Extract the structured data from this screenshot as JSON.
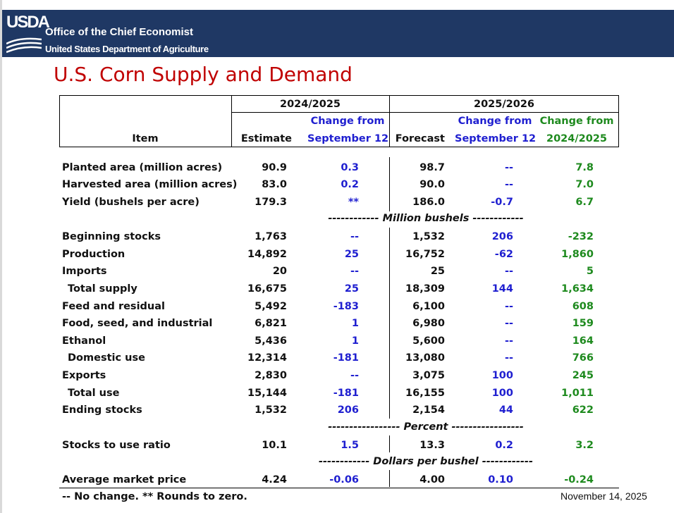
{
  "header": {
    "logo_text": "USDA",
    "org_line1": "Office of the Chief Economist",
    "org_line2": "United States Department of Agriculture"
  },
  "title": "U.S. Corn Supply and Demand",
  "table": {
    "group1": "2024/2025",
    "group2": "2025/2026",
    "col_item": "Item",
    "col_estimate": "Estimate",
    "col_change1_l1": "Change from",
    "col_change1_l2": "September 12",
    "col_forecast": "Forecast",
    "col_change2_l1": "Change from",
    "col_change2_l2": "September 12",
    "col_change3_l1": "Change from",
    "col_change3_l2": "2024/2025",
    "separators": {
      "million_bushels": "------------ Million bushels ------------",
      "percent": "----------------- Percent -----------------",
      "dollars": "------------ Dollars per bushel ------------"
    },
    "rows": [
      {
        "item": "Planted area (million acres)",
        "estimate": "90.9",
        "chg1": "0.3",
        "forecast": "98.7",
        "chg2": "--",
        "chg3": "7.8"
      },
      {
        "item": "Harvested area (million acres)",
        "estimate": "83.0",
        "chg1": "0.2",
        "forecast": "90.0",
        "chg2": "--",
        "chg3": "7.0"
      },
      {
        "item": "Yield (bushels per acre)",
        "estimate": "179.3",
        "chg1": "**",
        "forecast": "186.0",
        "chg2": "-0.7",
        "chg3": "6.7"
      },
      {
        "item": "Beginning stocks",
        "estimate": "1,763",
        "chg1": "--",
        "forecast": "1,532",
        "chg2": "206",
        "chg3": "-232"
      },
      {
        "item": "Production",
        "estimate": "14,892",
        "chg1": "25",
        "forecast": "16,752",
        "chg2": "-62",
        "chg3": "1,860"
      },
      {
        "item": "Imports",
        "estimate": "20",
        "chg1": "--",
        "forecast": "25",
        "chg2": "--",
        "chg3": "5"
      },
      {
        "item": "Total supply",
        "estimate": "16,675",
        "chg1": "25",
        "forecast": "18,309",
        "chg2": "144",
        "chg3": "1,634"
      },
      {
        "item": "Feed and residual",
        "estimate": "5,492",
        "chg1": "-183",
        "forecast": "6,100",
        "chg2": "--",
        "chg3": "608"
      },
      {
        "item": "Food, seed, and industrial",
        "estimate": "6,821",
        "chg1": "1",
        "forecast": "6,980",
        "chg2": "--",
        "chg3": "159"
      },
      {
        "item": "Ethanol",
        "estimate": "5,436",
        "chg1": "1",
        "forecast": "5,600",
        "chg2": "--",
        "chg3": "164"
      },
      {
        "item": "Domestic use",
        "estimate": "12,314",
        "chg1": "-181",
        "forecast": "13,080",
        "chg2": "--",
        "chg3": "766"
      },
      {
        "item": "Exports",
        "estimate": "2,830",
        "chg1": "--",
        "forecast": "3,075",
        "chg2": "100",
        "chg3": "245"
      },
      {
        "item": "Total use",
        "estimate": "15,144",
        "chg1": "-181",
        "forecast": "16,155",
        "chg2": "100",
        "chg3": "1,011"
      },
      {
        "item": "Ending stocks",
        "estimate": "1,532",
        "chg1": "206",
        "forecast": "2,154",
        "chg2": "44",
        "chg3": "622"
      },
      {
        "item": "Stocks to use ratio",
        "estimate": "10.1",
        "chg1": "1.5",
        "forecast": "13.3",
        "chg2": "0.2",
        "chg3": "3.2"
      },
      {
        "item": "Average market price",
        "estimate": "4.24",
        "chg1": "-0.06",
        "forecast": "4.00",
        "chg2": "0.10",
        "chg3": "-0.24"
      }
    ]
  },
  "footnote": "-- No change. ** Rounds to zero.",
  "date": "November 14, 2025",
  "colors": {
    "header_bg": "#1f3864",
    "title": "#c00000",
    "blue_values": "#1f1fd0",
    "green_values": "#1e8a1e"
  }
}
